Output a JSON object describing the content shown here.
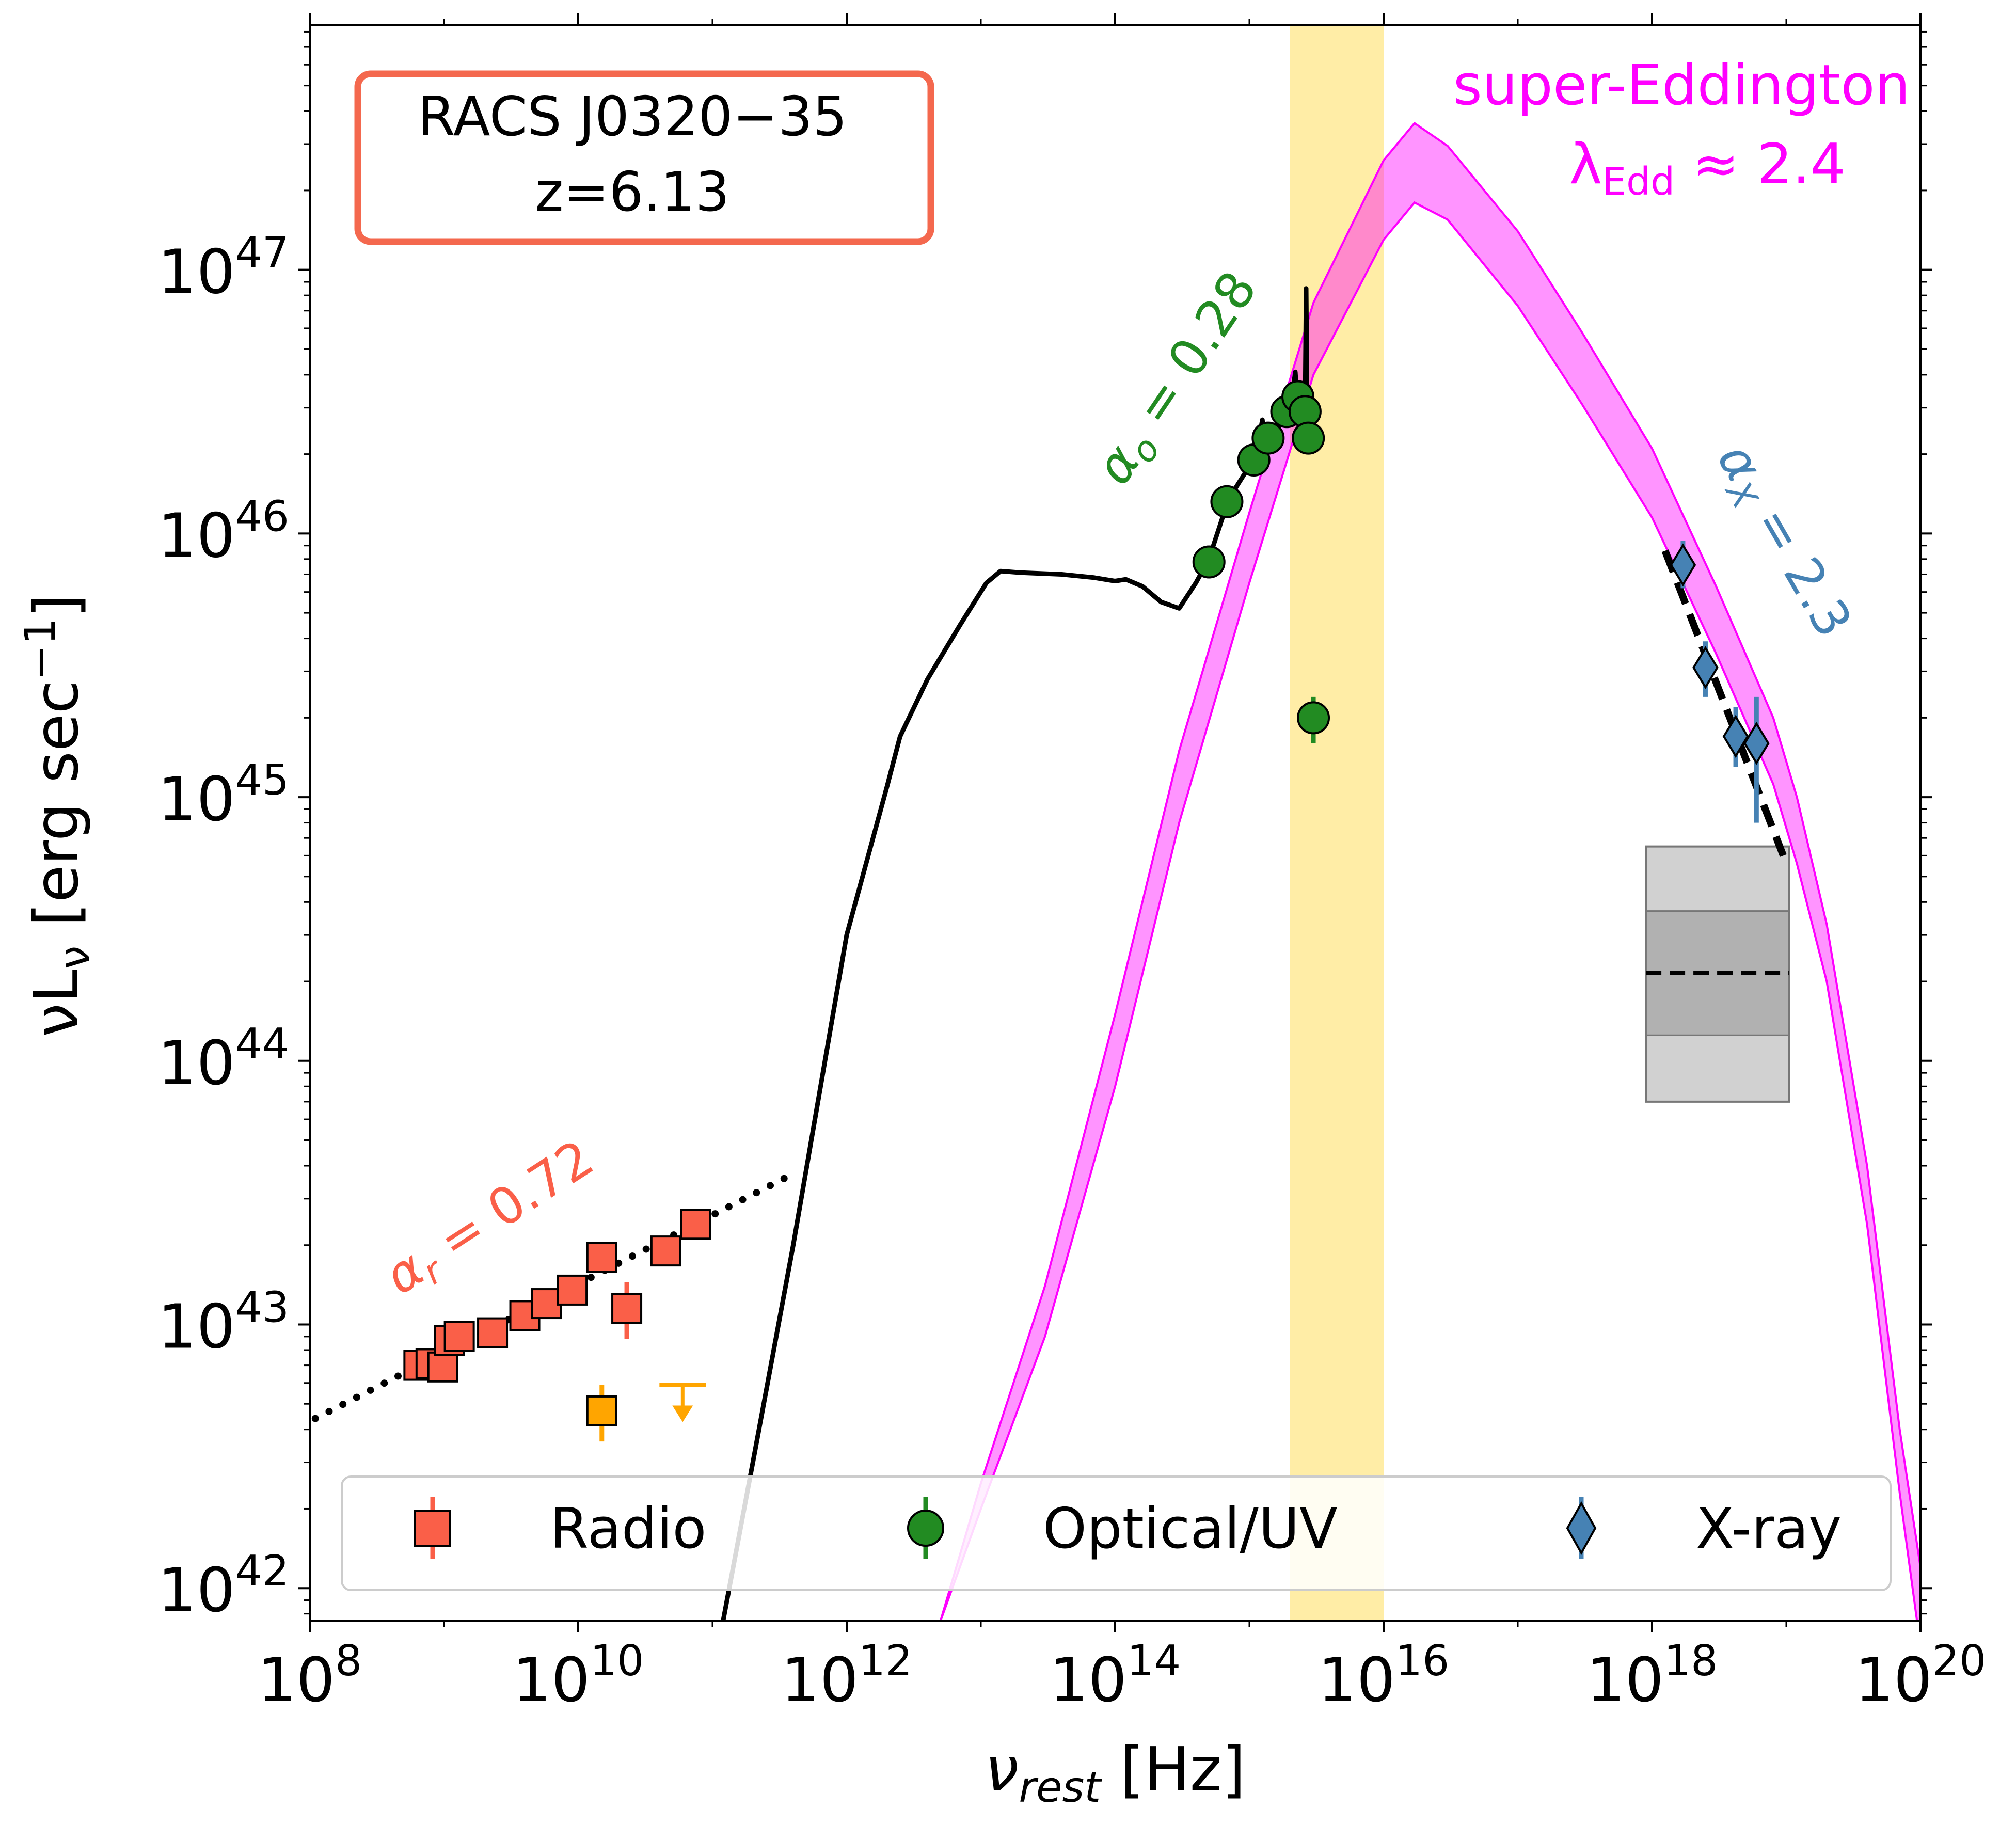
{
  "chart_data": {
    "type": "scatter",
    "title": "",
    "xlabel_main": "ν",
    "xlabel_sub": "rest",
    "xlabel_unit": " [Hz]",
    "ylabel_main": "νL",
    "ylabel_sub": "ν",
    "ylabel_unit": " [erg sec",
    "ylabel_exp": "−1",
    "ylabel_close": "]",
    "x_scale": "log",
    "y_scale": "log",
    "xlim": [
      100000000.0,
      1e+20
    ],
    "ylim": [
      7.5e+41,
      8.5e+47
    ],
    "x_ticks": [
      {
        "base": "10",
        "exp": "8",
        "value": 100000000.0
      },
      {
        "base": "10",
        "exp": "10",
        "value": 10000000000.0
      },
      {
        "base": "10",
        "exp": "12",
        "value": 1000000000000.0
      },
      {
        "base": "10",
        "exp": "14",
        "value": 100000000000000.0
      },
      {
        "base": "10",
        "exp": "16",
        "value": 1e+16
      },
      {
        "base": "10",
        "exp": "18",
        "value": 1e+18
      },
      {
        "base": "10",
        "exp": "20",
        "value": 1e+20
      }
    ],
    "y_ticks": [
      {
        "base": "10",
        "exp": "42",
        "value": 1e+42
      },
      {
        "base": "10",
        "exp": "43",
        "value": 1e+43
      },
      {
        "base": "10",
        "exp": "44",
        "value": 1e+44
      },
      {
        "base": "10",
        "exp": "45",
        "value": 1e+45
      },
      {
        "base": "10",
        "exp": "46",
        "value": 1e+46
      },
      {
        "base": "10",
        "exp": "47",
        "value": 1e+47
      }
    ],
    "colors": {
      "radio": "#fa5f48",
      "radio_limit": "#ffa500",
      "optical": "#228b22",
      "xray": "#4682b4",
      "eddington": "#ff00ff",
      "shade": "#ffe680",
      "box": "#f4684e"
    },
    "source_box": {
      "line1": "RACS J0320−35",
      "line2": "z=6.13"
    },
    "annotations": {
      "eddington_main": "super-Eddington",
      "eddington_lambda": "λ",
      "eddington_sub": "Edd",
      "eddington_value": " ≈ 2.4",
      "alpha_o_symbol": "α",
      "alpha_o_sub": "o",
      "alpha_o_value": " = 0.28",
      "alpha_x_symbol": "α",
      "alpha_x_sub": "X",
      "alpha_x_value": " = 2.3",
      "alpha_r_symbol": "α",
      "alpha_r_sub": "r",
      "alpha_r_value": " = 0.72"
    },
    "legend": {
      "location": "lower center",
      "entries": [
        {
          "label": "Radio",
          "marker": "square",
          "color": "#fa5f48"
        },
        {
          "label": "Optical/UV",
          "marker": "circle",
          "color": "#228b22"
        },
        {
          "label": "X-ray",
          "marker": "diamond",
          "color": "#4682b4"
        }
      ]
    },
    "shaded_band": {
      "x": [
        2000000000000000.0,
        1e+16
      ]
    },
    "series": [
      {
        "name": "Radio",
        "marker": "square",
        "points": [
          {
            "x": 650000000.0,
            "y": 7e+42,
            "ylo": 6.2e+42,
            "yhi": 7.8e+42
          },
          {
            "x": 800000000.0,
            "y": 7.1e+42
          },
          {
            "x": 980000000.0,
            "y": 6.9e+42
          },
          {
            "x": 1100000000.0,
            "y": 8.7e+42
          },
          {
            "x": 1300000000.0,
            "y": 9e+42
          },
          {
            "x": 2300000000.0,
            "y": 9.3e+42,
            "ylo": 8.5e+42,
            "yhi": 1e+43
          },
          {
            "x": 4000000000.0,
            "y": 1.08e+43
          },
          {
            "x": 5800000000.0,
            "y": 1.2e+43
          },
          {
            "x": 9000000000.0,
            "y": 1.35e+43
          },
          {
            "x": 15000000000.0,
            "y": 1.8e+43
          },
          {
            "x": 23000000000.0,
            "y": 1.15e+43,
            "ylo": 8.8e+42,
            "yhi": 1.45e+43
          },
          {
            "x": 45000000000.0,
            "y": 1.9e+43
          },
          {
            "x": 75000000000.0,
            "y": 2.4e+43
          }
        ]
      },
      {
        "name": "Radio limits",
        "points": [
          {
            "x": 15000000000.0,
            "y": 4.7e+42,
            "ylo": 3.6e+42,
            "yhi": 5.9e+42,
            "marker": "square"
          },
          {
            "x": 60000000000.0,
            "y": 5.9e+42,
            "marker": "upper-limit"
          }
        ]
      },
      {
        "name": "Optical/UV",
        "marker": "circle",
        "points": [
          {
            "x": 500000000000000.0,
            "y": 7.8e+45
          },
          {
            "x": 680000000000000.0,
            "y": 1.32e+46
          },
          {
            "x": 1080000000000000.0,
            "y": 1.9e+46
          },
          {
            "x": 1380000000000000.0,
            "y": 2.3e+46
          },
          {
            "x": 1900000000000000.0,
            "y": 2.9e+46
          },
          {
            "x": 2300000000000000.0,
            "y": 3.3e+46
          },
          {
            "x": 2600000000000000.0,
            "y": 2.9e+46
          },
          {
            "x": 2750000000000000.0,
            "y": 2.3e+46
          },
          {
            "x": 3000000000000000.0,
            "y": 2e+45,
            "ylo": 1.6e+45,
            "yhi": 2.4e+45
          }
        ]
      },
      {
        "name": "X-ray",
        "marker": "diamond",
        "points": [
          {
            "x": 1.7e+18,
            "y": 7.6e+45,
            "ylo": 6.2e+45,
            "yhi": 9.4e+45
          },
          {
            "x": 2.5e+18,
            "y": 3.1e+45,
            "ylo": 2.4e+45,
            "yhi": 3.9e+45
          },
          {
            "x": 4.2e+18,
            "y": 1.7e+45,
            "ylo": 1.3e+45,
            "yhi": 2.2e+45
          },
          {
            "x": 6e+18,
            "y": 1.6e+45,
            "ylo": 8e+44,
            "yhi": 2.4e+45
          }
        ]
      }
    ],
    "sed_template": {
      "name": "quasar template",
      "points": [
        [
          120000000000.0,
          7.5e+41
        ],
        [
          200000000000.0,
          3e+42
        ],
        [
          400000000000.0,
          2e+43
        ],
        [
          1000000000000.0,
          3e+44
        ],
        [
          2000000000000.0,
          1.1e+45
        ],
        [
          2500000000000.0,
          1.7e+45
        ],
        [
          4000000000000.0,
          2.8e+45
        ],
        [
          7000000000000.0,
          4.5e+45
        ],
        [
          11000000000000.0,
          6.5e+45
        ],
        [
          14000000000000.0,
          7.2e+45
        ],
        [
          20000000000000.0,
          7.1e+45
        ],
        [
          40000000000000.0,
          7e+45
        ],
        [
          70000000000000.0,
          6.8e+45
        ],
        [
          100000000000000.0,
          6.6e+45
        ],
        [
          120000000000000.0,
          6.7e+45
        ],
        [
          160000000000000.0,
          6.3e+45
        ],
        [
          220000000000000.0,
          5.5e+45
        ],
        [
          300000000000000.0,
          5.2e+45
        ],
        [
          400000000000000.0,
          6.5e+45
        ],
        [
          500000000000000.0,
          8e+45
        ],
        [
          700000000000000.0,
          1.35e+46
        ],
        [
          1000000000000000.0,
          1.8e+46
        ],
        [
          1200000000000000.0,
          2.4e+46
        ],
        [
          1250000000000000.0,
          2.7e+46
        ],
        [
          1300000000000000.0,
          2.2e+46
        ],
        [
          1600000000000000.0,
          2.5e+46
        ],
        [
          2000000000000000.0,
          2.8e+46
        ],
        [
          2200000000000000.0,
          4.1e+46
        ],
        [
          2300000000000000.0,
          2.9e+46
        ],
        [
          2600000000000000.0,
          2.9e+46
        ],
        [
          2650000000000000.0,
          8.5e+46
        ],
        [
          2700000000000000.0,
          2.4e+46
        ]
      ]
    },
    "eddington_band": {
      "x": [
        5000000000000.0,
        10000000000000.0,
        30000000000000.0,
        100000000000000.0,
        300000000000000.0,
        1000000000000000.0,
        3000000000000000.0,
        1e+16,
        1.7e+16,
        3e+16,
        1e+17,
        3e+17,
        1e+18,
        3e+18,
        8e+18,
        1.2e+19,
        2e+19,
        4e+19,
        7e+19,
        1e+20
      ],
      "ylo": [
        7.5e+41,
        2e+42,
        9e+42,
        8e+43,
        8e+44,
        6.5e+45,
        4e+46,
        1.3e+47,
        1.8e+47,
        1.55e+47,
        7.3e+46,
        3.1e+46,
        1.15e+46,
        3.5e+45,
        1.12e+45,
        5.6e+44,
        2e+44,
        2.4e+43,
        2.3e+42,
        6e+41
      ],
      "yhi": [
        7.5e+41,
        2.5e+42,
        1.4e+43,
        1.5e+44,
        1.5e+45,
        1.2e+46,
        7.5e+46,
        2.6e+47,
        3.6e+47,
        2.95e+47,
        1.4e+47,
        5.8e+46,
        2.1e+46,
        6.3e+45,
        2e+45,
        1e+45,
        3.3e+44,
        4e+43,
        4e+42,
        1.2e+42
      ]
    },
    "fit_lines": [
      {
        "name": "radio fit",
        "style": "dotted",
        "x": [
          110000000.0,
          350000000000.0
        ],
        "y": [
          4.4e+42,
          3.6e+43
        ]
      },
      {
        "name": "xray fit",
        "style": "dashed",
        "x": [
          1.25e+18,
          9.5e+18
        ],
        "y": [
          8.6e+45,
          6e+44
        ]
      }
    ],
    "xray_box": {
      "x": [
        9e+17,
        1.05e+19
      ],
      "outer": [
        7e+43,
        6.5e+44
      ],
      "inner": [
        1.25e+44,
        3.7e+44
      ],
      "median": 2.15e+44
    }
  }
}
